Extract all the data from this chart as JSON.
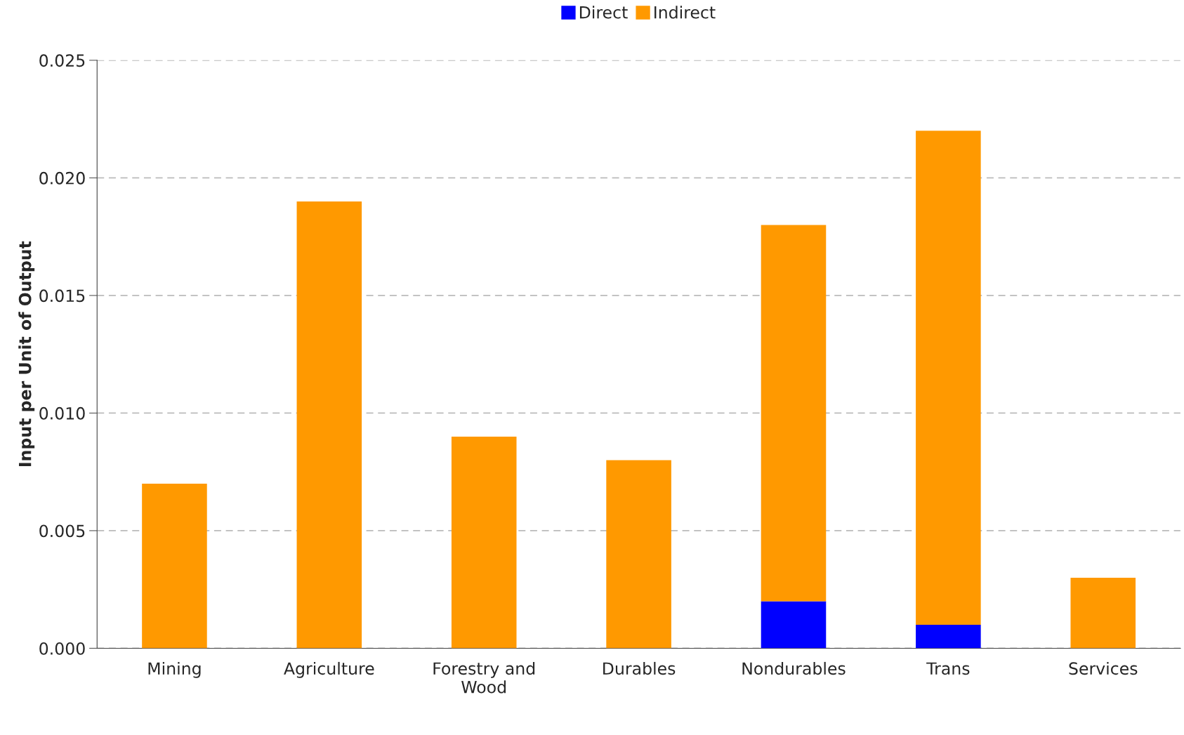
{
  "chart_data": {
    "type": "bar",
    "ylabel": "Input per Unit of Output",
    "categories": [
      "Mining",
      "Agriculture",
      "Forestry and Wood",
      "Durables",
      "Nondurables",
      "Trans",
      "Services"
    ],
    "series": [
      {
        "name": "Direct",
        "color": "#0000ff",
        "values": [
          0,
          0,
          0,
          0,
          0.002,
          0.001,
          0
        ]
      },
      {
        "name": "Indirect",
        "color": "#ff9900",
        "values": [
          0.007,
          0.019,
          0.009,
          0.008,
          0.016,
          0.021,
          0.003
        ]
      }
    ],
    "stacked": true,
    "ylim": [
      0,
      0.025
    ],
    "yticks": [
      {
        "value": 0,
        "label": "0.000"
      },
      0.005,
      {
        "value": 0.01,
        "label": "0.010"
      },
      0.015,
      {
        "value": 0.02,
        "label": "0.020"
      },
      0.025
    ],
    "grid": "y",
    "legend": "top"
  }
}
